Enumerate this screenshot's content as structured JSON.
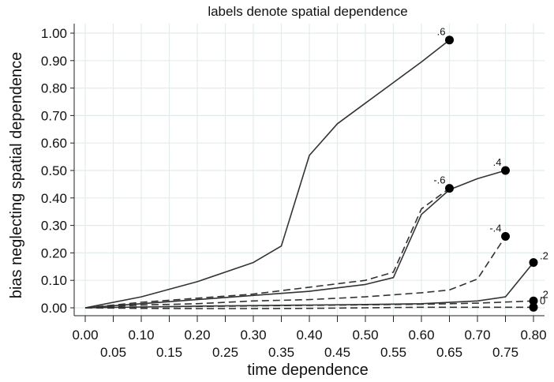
{
  "chart_data": {
    "type": "line",
    "title": "labels denote spatial dependence",
    "xlabel": "time dependence",
    "ylabel": "bias neglecting spatial dependence",
    "xlim": [
      0,
      0.8
    ],
    "ylim": [
      0,
      1
    ],
    "grid": true,
    "legend": "none",
    "x_ticks_row1": [
      "0.00",
      "0.10",
      "0.20",
      "0.30",
      "0.40",
      "0.50",
      "0.60",
      "0.70",
      "0.80"
    ],
    "x_ticks_row2": [
      "0.05",
      "0.15",
      "0.25",
      "0.35",
      "0.45",
      "0.55",
      "0.65",
      "0.75"
    ],
    "y_ticks": [
      "0.00",
      "0.10",
      "0.20",
      "0.30",
      "0.40",
      "0.50",
      "0.60",
      "0.70",
      "0.80",
      "0.90",
      "1.00"
    ],
    "series": [
      {
        "name": ".6",
        "dash": "solid",
        "x": [
          0,
          0.1,
          0.2,
          0.3,
          0.35,
          0.4,
          0.45,
          0.5,
          0.55,
          0.6,
          0.65
        ],
        "y": [
          0,
          0.04,
          0.095,
          0.165,
          0.225,
          0.555,
          0.67,
          0.745,
          0.82,
          0.895,
          0.975
        ]
      },
      {
        "name": ".4",
        "dash": "solid",
        "x": [
          0,
          0.1,
          0.2,
          0.3,
          0.4,
          0.5,
          0.55,
          0.6,
          0.65,
          0.7,
          0.75
        ],
        "y": [
          0,
          0.015,
          0.03,
          0.045,
          0.06,
          0.085,
          0.11,
          0.34,
          0.43,
          0.47,
          0.5
        ]
      },
      {
        "name": "-.6",
        "dash": "dashed",
        "x": [
          0,
          0.1,
          0.2,
          0.3,
          0.4,
          0.5,
          0.55,
          0.6,
          0.65
        ],
        "y": [
          0,
          0.02,
          0.035,
          0.05,
          0.075,
          0.1,
          0.13,
          0.36,
          0.435
        ]
      },
      {
        "name": "-.4",
        "dash": "dashed",
        "x": [
          0,
          0.1,
          0.2,
          0.3,
          0.4,
          0.5,
          0.6,
          0.65,
          0.7,
          0.75
        ],
        "y": [
          0,
          0.01,
          0.015,
          0.025,
          0.03,
          0.04,
          0.055,
          0.065,
          0.105,
          0.26
        ]
      },
      {
        "name": ".2",
        "dash": "solid",
        "x": [
          0,
          0.1,
          0.2,
          0.3,
          0.4,
          0.5,
          0.6,
          0.7,
          0.75,
          0.8
        ],
        "y": [
          0,
          0.003,
          0.006,
          0.008,
          0.01,
          0.012,
          0.015,
          0.025,
          0.04,
          0.165
        ]
      },
      {
        "name": ".2",
        "dash": "dashed",
        "x": [
          0,
          0.1,
          0.2,
          0.3,
          0.4,
          0.5,
          0.6,
          0.7,
          0.8
        ],
        "y": [
          0,
          0.003,
          0.005,
          0.007,
          0.009,
          0.011,
          0.013,
          0.017,
          0.025
        ]
      },
      {
        "name": "0",
        "dash": "dashed",
        "x": [
          0,
          0.1,
          0.2,
          0.3,
          0.4,
          0.5,
          0.6,
          0.7,
          0.8
        ],
        "y": [
          0,
          -0.002,
          -0.003,
          -0.003,
          -0.002,
          0,
          0.002,
          0.002,
          0.002
        ]
      }
    ],
    "end_labels": [
      {
        "text": ".6",
        "x": 0.65,
        "y": 0.975,
        "pos": "upper-left"
      },
      {
        "text": ".4",
        "x": 0.75,
        "y": 0.5,
        "pos": "upper-left"
      },
      {
        "text": "-.6",
        "x": 0.65,
        "y": 0.435,
        "pos": "upper-left"
      },
      {
        "text": "-.4",
        "x": 0.75,
        "y": 0.26,
        "pos": "upper-left"
      },
      {
        "text": ".2",
        "x": 0.8,
        "y": 0.165,
        "pos": "upper-right"
      },
      {
        "text": ".2",
        "x": 0.8,
        "y": 0.025,
        "pos": "upper-right"
      },
      {
        "text": "0",
        "x": 0.8,
        "y": 0.002,
        "pos": "upper-right"
      }
    ],
    "colors": {
      "line": "#333333",
      "marker": "#000000",
      "grid": "#e3ebec"
    }
  }
}
